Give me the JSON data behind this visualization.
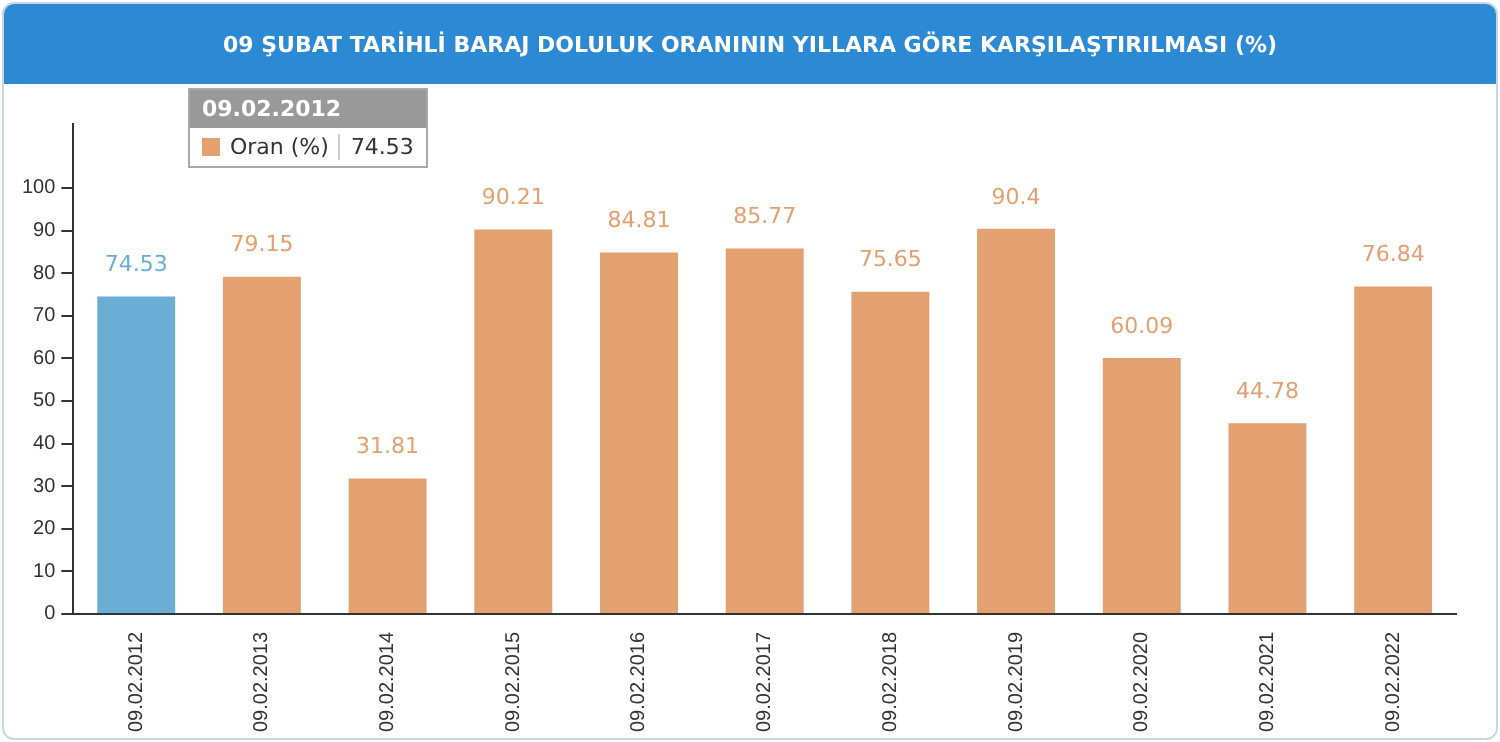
{
  "chart_data": {
    "type": "bar",
    "title": "09 ŞUBAT TARİHLİ BARAJ DOLULUK ORANININ YILLARA GÖRE KARŞILAŞTIRILMASI (%)",
    "categories": [
      "09.02.2012",
      "09.02.2013",
      "09.02.2014",
      "09.02.2015",
      "09.02.2016",
      "09.02.2017",
      "09.02.2018",
      "09.02.2019",
      "09.02.2020",
      "09.02.2021",
      "09.02.2022"
    ],
    "series": [
      {
        "name": "Oran (%)",
        "color": "#e3a071",
        "colors": [
          "#6aaed6",
          "#e3a071",
          "#e3a071",
          "#e3a071",
          "#e3a071",
          "#e3a071",
          "#e3a071",
          "#e3a071",
          "#e3a071",
          "#e3a071",
          "#e3a071"
        ],
        "values": [
          74.53,
          79.15,
          31.81,
          90.21,
          84.81,
          85.77,
          75.65,
          90.4,
          60.09,
          44.78,
          76.84
        ]
      }
    ],
    "ylim": [
      0,
      115
    ],
    "yticks": [
      0,
      10,
      20,
      30,
      40,
      50,
      60,
      70,
      80,
      90,
      100
    ],
    "grid": false,
    "data_labels": true,
    "legend": "top left",
    "annotations": [
      "09.02.2012",
      "74.53"
    ]
  }
}
